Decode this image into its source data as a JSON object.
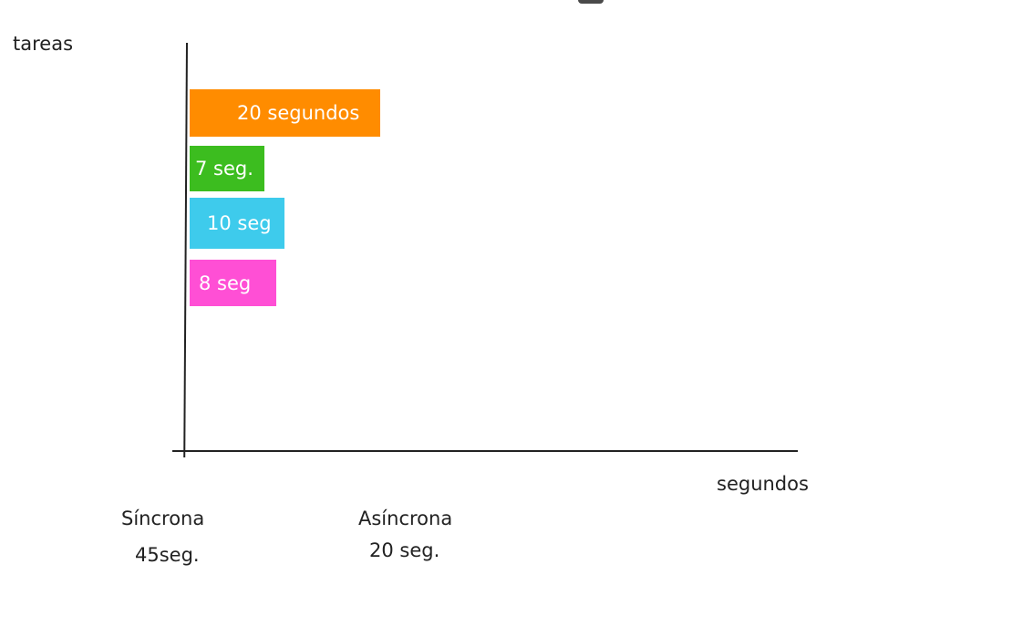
{
  "diagram": {
    "y_axis_label": "tareas",
    "x_axis_label": "segundos",
    "bars": [
      {
        "label": "20 segundos",
        "color": "#ff8c00"
      },
      {
        "label": "7 seg.",
        "color": "#3cbd1f"
      },
      {
        "label": "10 seg",
        "color": "#3ecbec"
      },
      {
        "label": "8 seg",
        "color": "#ff4fd5"
      }
    ],
    "sync": {
      "label": "Síncrona",
      "value": "45seg."
    },
    "async": {
      "label": "Asíncrona",
      "value": "20 seg."
    }
  }
}
